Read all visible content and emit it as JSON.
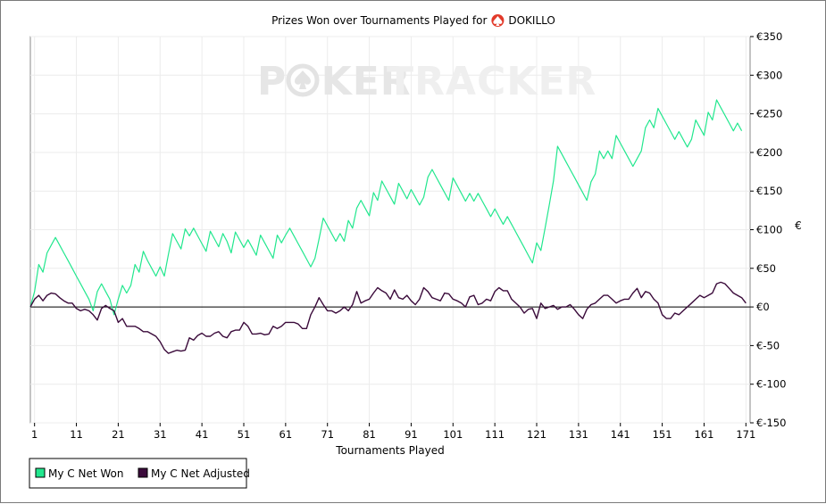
{
  "chart_data": {
    "type": "line",
    "title_prefix": "Prizes Won over Tournaments Played for",
    "title_player": "DOKILLO",
    "title_icon": "poker-spade-icon",
    "watermark": {
      "part1": "POKER",
      "part2": "TRACKER",
      "o_icon": "spade-chip-icon"
    },
    "xlabel": "Tournaments Played",
    "ylabel": "€",
    "xlim": [
      0,
      172
    ],
    "ylim": [
      -150,
      350
    ],
    "x_ticks": [
      "1",
      "11",
      "21",
      "31",
      "41",
      "51",
      "61",
      "71",
      "81",
      "91",
      "101",
      "111",
      "121",
      "131",
      "141",
      "151",
      "161",
      "171"
    ],
    "y_ticks": [
      "€350",
      "€300",
      "€250",
      "€200",
      "€150",
      "€100",
      "€50",
      "€0",
      "€-50",
      "€-100",
      "€-150"
    ],
    "grid": true,
    "zero_line": true,
    "legend_position": "bottom-left",
    "series": [
      {
        "name": "My C Net Won",
        "color": "#22e78e",
        "values": [
          0,
          20,
          55,
          45,
          70,
          80,
          90,
          80,
          70,
          60,
          50,
          40,
          30,
          20,
          10,
          -5,
          20,
          30,
          20,
          10,
          -10,
          10,
          28,
          18,
          28,
          55,
          45,
          72,
          60,
          50,
          40,
          52,
          40,
          68,
          95,
          85,
          75,
          101,
          92,
          102,
          92,
          82,
          72,
          98,
          88,
          78,
          95,
          85,
          70,
          97,
          87,
          77,
          87,
          77,
          67,
          93,
          83,
          73,
          63,
          93,
          83,
          93,
          102,
          92,
          82,
          72,
          62,
          52,
          63,
          88,
          115,
          105,
          95,
          85,
          95,
          85,
          112,
          102,
          128,
          138,
          128,
          118,
          148,
          138,
          163,
          153,
          143,
          133,
          160,
          150,
          140,
          152,
          142,
          132,
          142,
          168,
          178,
          168,
          158,
          148,
          138,
          167,
          157,
          147,
          137,
          147,
          137,
          147,
          137,
          127,
          117,
          127,
          117,
          107,
          117,
          107,
          97,
          87,
          77,
          67,
          57,
          83,
          73,
          102,
          132,
          163,
          208,
          198,
          188,
          178,
          168,
          158,
          148,
          138,
          162,
          172,
          202,
          192,
          202,
          192,
          222,
          212,
          202,
          192,
          182,
          192,
          202,
          232,
          242,
          232,
          257,
          247,
          237,
          227,
          217,
          227,
          217,
          207,
          217,
          242,
          232,
          222,
          252,
          242,
          268,
          258,
          248,
          238,
          228,
          238,
          228
        ]
      },
      {
        "name": "My C Net Adjusted",
        "color": "#3a0a3a",
        "values": [
          0,
          10,
          15,
          8,
          15,
          18,
          17,
          12,
          8,
          5,
          5,
          -2,
          -5,
          -3,
          -5,
          -10,
          -17,
          -2,
          2,
          -2,
          -5,
          -20,
          -15,
          -25,
          -25,
          -25,
          -28,
          -32,
          -32,
          -35,
          -38,
          -45,
          -55,
          -60,
          -58,
          -56,
          -57,
          -56,
          -40,
          -43,
          -37,
          -34,
          -38,
          -38,
          -34,
          -32,
          -38,
          -40,
          -32,
          -30,
          -30,
          -20,
          -25,
          -35,
          -35,
          -34,
          -36,
          -35,
          -25,
          -28,
          -25,
          -20,
          -20,
          -20,
          -22,
          -28,
          -28,
          -10,
          0,
          12,
          3,
          -5,
          -5,
          -8,
          -5,
          0,
          -5,
          3,
          20,
          5,
          8,
          10,
          18,
          25,
          21,
          18,
          10,
          22,
          12,
          10,
          15,
          8,
          3,
          10,
          25,
          20,
          12,
          10,
          8,
          18,
          17,
          10,
          8,
          5,
          0,
          13,
          15,
          3,
          5,
          10,
          8,
          20,
          25,
          21,
          21,
          10,
          5,
          0,
          -8,
          -3,
          -2,
          -15,
          5,
          -2,
          0,
          2,
          -3,
          0,
          0,
          3,
          -3,
          -10,
          -15,
          -3,
          3,
          5,
          10,
          15,
          15,
          10,
          5,
          8,
          10,
          10,
          18,
          24,
          12,
          20,
          18,
          10,
          5,
          -10,
          -15,
          -15,
          -8,
          -10,
          -5,
          0,
          5,
          10,
          15,
          12,
          15,
          18,
          30,
          32,
          30,
          24,
          18,
          15,
          12,
          5
        ]
      }
    ]
  }
}
